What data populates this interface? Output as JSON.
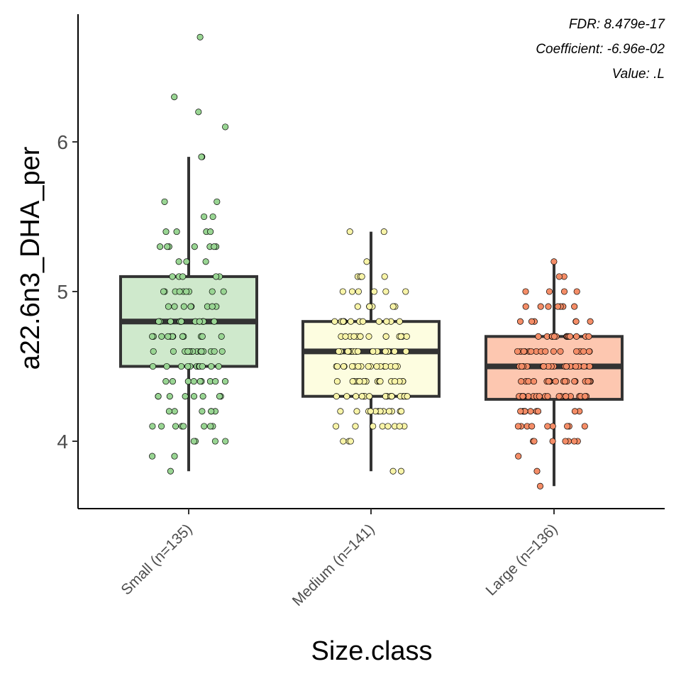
{
  "chart_data": {
    "type": "box",
    "title": "",
    "xlabel": "Size.class",
    "ylabel": "a22.6n3_DHA_per",
    "ylim": [
      3.55,
      6.85
    ],
    "yticks": [
      4,
      5,
      6
    ],
    "grid": false,
    "legend": "none",
    "annotations": [
      "FDR: 8.479e-17",
      "Coefficient: -6.96e-02",
      "Value: .L"
    ],
    "categories": [
      "Small (n=135)",
      "Medium (n=141)",
      "Large (n=136)"
    ],
    "fills": [
      "#cfe9cc",
      "#fdfde0",
      "#fdc7b0"
    ],
    "point_colors": [
      "#99d593",
      "#f8f4a8",
      "#f48d67"
    ],
    "boxes": [
      {
        "category": "Small (n=135)",
        "whisker_low": 3.8,
        "q1": 4.5,
        "median": 4.8,
        "q3": 5.1,
        "whisker_high": 5.9
      },
      {
        "category": "Medium (n=141)",
        "whisker_low": 3.8,
        "q1": 4.3,
        "median": 4.6,
        "q3": 4.8,
        "whisker_high": 5.4
      },
      {
        "category": "Large (n=136)",
        "whisker_low": 3.7,
        "q1": 4.28,
        "median": 4.5,
        "q3": 4.7,
        "whisker_high": 5.2
      }
    ],
    "points": [
      [
        6.7,
        6.3,
        6.2,
        6.1,
        5.9,
        5.9,
        5.6,
        5.6,
        5.5,
        5.5,
        5.4,
        5.4,
        5.4,
        5.4,
        5.3,
        5.3,
        5.3,
        5.3,
        5.3,
        5.3,
        5.3,
        5.2,
        5.2,
        5.2,
        5.1,
        5.1,
        5.1,
        5.1,
        5.1,
        5.0,
        5.0,
        5.0,
        5.0,
        5.0,
        5.0,
        5.0,
        5.0,
        5.0,
        4.9,
        4.9,
        4.9,
        4.9,
        4.9,
        4.9,
        4.9,
        4.8,
        4.8,
        4.8,
        4.8,
        4.8,
        4.8,
        4.8,
        4.8,
        4.8,
        4.8,
        4.8,
        4.7,
        4.7,
        4.7,
        4.7,
        4.7,
        4.7,
        4.7,
        4.7,
        4.7,
        4.7,
        4.7,
        4.7,
        4.6,
        4.6,
        4.6,
        4.6,
        4.6,
        4.6,
        4.6,
        4.6,
        4.6,
        4.6,
        4.6,
        4.6,
        4.6,
        4.6,
        4.5,
        4.5,
        4.5,
        4.5,
        4.5,
        4.5,
        4.5,
        4.5,
        4.5,
        4.5,
        4.4,
        4.4,
        4.4,
        4.4,
        4.4,
        4.4,
        4.4,
        4.4,
        4.3,
        4.3,
        4.3,
        4.3,
        4.3,
        4.3,
        4.3,
        4.2,
        4.2,
        4.2,
        4.2,
        4.2,
        4.1,
        4.1,
        4.1,
        4.1,
        4.1,
        4.1,
        4.1,
        4.0,
        4.0,
        4.0,
        3.9,
        3.9,
        3.8,
        4.9,
        4.8,
        4.7,
        4.6,
        4.5,
        4.4,
        4.3,
        4.2,
        4.1,
        4.0
      ],
      [
        5.4,
        5.4,
        5.2,
        5.1,
        5.1,
        5.1,
        5.1,
        5.0,
        5.0,
        5.0,
        5.0,
        5.0,
        5.0,
        4.9,
        4.9,
        4.9,
        4.9,
        4.9,
        4.9,
        4.8,
        4.8,
        4.8,
        4.8,
        4.8,
        4.8,
        4.8,
        4.8,
        4.8,
        4.8,
        4.8,
        4.8,
        4.7,
        4.7,
        4.7,
        4.7,
        4.7,
        4.7,
        4.7,
        4.7,
        4.7,
        4.7,
        4.6,
        4.6,
        4.6,
        4.6,
        4.6,
        4.6,
        4.6,
        4.6,
        4.6,
        4.6,
        4.6,
        4.6,
        4.6,
        4.5,
        4.5,
        4.5,
        4.5,
        4.5,
        4.5,
        4.5,
        4.5,
        4.5,
        4.5,
        4.5,
        4.5,
        4.4,
        4.4,
        4.4,
        4.4,
        4.4,
        4.4,
        4.4,
        4.4,
        4.4,
        4.4,
        4.4,
        4.4,
        4.4,
        4.3,
        4.3,
        4.3,
        4.3,
        4.3,
        4.3,
        4.3,
        4.3,
        4.3,
        4.3,
        4.3,
        4.3,
        4.3,
        4.2,
        4.2,
        4.2,
        4.2,
        4.2,
        4.2,
        4.2,
        4.2,
        4.2,
        4.2,
        4.2,
        4.1,
        4.1,
        4.1,
        4.1,
        4.1,
        4.1,
        4.1,
        4.1,
        4.0,
        4.0,
        4.0,
        3.8,
        3.8,
        4.7,
        4.6,
        4.5,
        4.4,
        4.3,
        4.7,
        4.6,
        4.5,
        4.4,
        4.3,
        4.8,
        4.7,
        4.6,
        4.5,
        4.4,
        4.3,
        4.2,
        4.6,
        4.5,
        4.4,
        4.7,
        4.6,
        4.5,
        4.4,
        4.3
      ],
      [
        5.2,
        5.1,
        5.1,
        5.0,
        5.0,
        5.0,
        5.0,
        4.9,
        4.9,
        4.9,
        4.9,
        4.9,
        4.9,
        4.9,
        4.8,
        4.8,
        4.8,
        4.8,
        4.8,
        4.8,
        4.7,
        4.7,
        4.7,
        4.7,
        4.7,
        4.7,
        4.7,
        4.7,
        4.7,
        4.7,
        4.7,
        4.7,
        4.7,
        4.6,
        4.6,
        4.6,
        4.6,
        4.6,
        4.6,
        4.6,
        4.6,
        4.6,
        4.6,
        4.6,
        4.6,
        4.5,
        4.5,
        4.5,
        4.5,
        4.5,
        4.5,
        4.5,
        4.5,
        4.5,
        4.5,
        4.5,
        4.5,
        4.5,
        4.5,
        4.4,
        4.4,
        4.4,
        4.4,
        4.4,
        4.4,
        4.4,
        4.4,
        4.4,
        4.4,
        4.4,
        4.4,
        4.4,
        4.3,
        4.3,
        4.3,
        4.3,
        4.3,
        4.3,
        4.3,
        4.3,
        4.3,
        4.3,
        4.3,
        4.3,
        4.3,
        4.3,
        4.3,
        4.2,
        4.2,
        4.2,
        4.2,
        4.2,
        4.2,
        4.2,
        4.2,
        4.2,
        4.1,
        4.1,
        4.1,
        4.1,
        4.1,
        4.1,
        4.1,
        4.1,
        4.1,
        4.0,
        4.0,
        4.0,
        4.0,
        4.0,
        4.0,
        4.0,
        3.9,
        3.8,
        3.7,
        4.6,
        4.5,
        4.4,
        4.3,
        4.2,
        4.6,
        4.5,
        4.4,
        4.3,
        4.7,
        4.6,
        4.5,
        4.4,
        4.3,
        4.2,
        4.5,
        4.4,
        4.3,
        4.6,
        4.5,
        4.4
      ]
    ]
  }
}
